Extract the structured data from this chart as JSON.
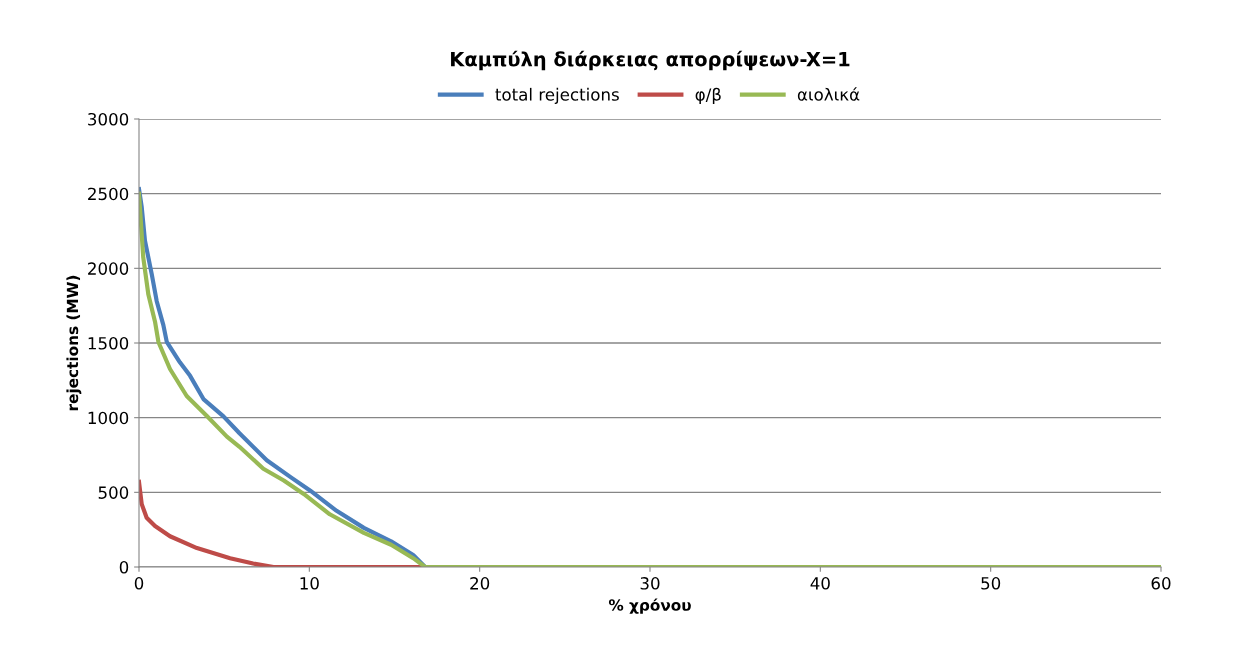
{
  "chart_data": {
    "type": "line",
    "title": "Καμπύλη διάρκειας απορρίψεων-X=1",
    "xlabel": "% χρόνου",
    "ylabel": "rejections (MW)",
    "xlim": [
      0,
      60
    ],
    "xticks": [
      0,
      10,
      20,
      30,
      40,
      50,
      60
    ],
    "ylim": [
      0,
      3000
    ],
    "yticks": [
      0,
      500,
      1000,
      1500,
      2000,
      2500,
      3000
    ],
    "grid": "y",
    "legend": "top",
    "marker": "none",
    "line_style": "solid",
    "series": [
      {
        "name": "total rejections",
        "color": "#4a7ebb",
        "x": [
          0,
          0.16,
          0.35,
          0.75,
          1.04,
          1.43,
          1.63,
          2.4,
          3.0,
          3.8,
          4.96,
          5.9,
          7.5,
          8.9,
          10.06,
          11.6,
          13.2,
          14.8,
          16.1,
          16.8
        ],
        "values": [
          2530,
          2410,
          2185,
          1960,
          1780,
          1620,
          1507,
          1371,
          1280,
          1122,
          1009,
          896,
          715,
          602,
          511,
          376,
          262,
          172,
          81,
          0
        ]
      },
      {
        "name": "φ/β",
        "color": "#be4b48",
        "x": [
          0,
          0.16,
          0.45,
          0.94,
          1.82,
          3.4,
          5.35,
          6.7,
          7.9,
          16.5
        ],
        "values": [
          570,
          421,
          330,
          274,
          206,
          127,
          59,
          23,
          0,
          0
        ]
      },
      {
        "name": "αιολικά",
        "color": "#98b954",
        "x": [
          0,
          0.25,
          0.55,
          0.94,
          1.14,
          1.82,
          2.8,
          4.0,
          5.16,
          5.9,
          7.3,
          8.5,
          9.67,
          11.2,
          13.2,
          14.8,
          16.1,
          16.8,
          60
        ],
        "values": [
          2500,
          2072,
          1824,
          1643,
          1507,
          1326,
          1145,
          1009,
          873,
          805,
          658,
          579,
          489,
          353,
          229,
          149,
          59,
          0,
          0
        ]
      }
    ]
  }
}
